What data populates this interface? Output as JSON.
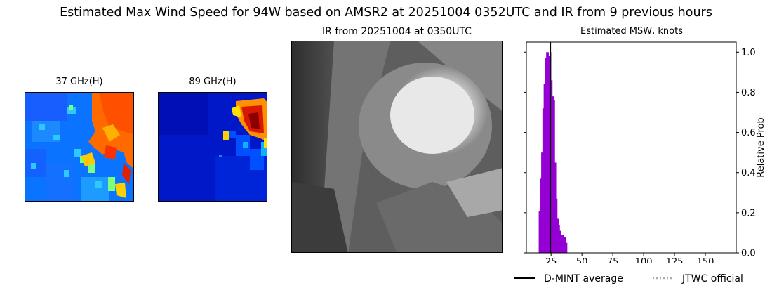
{
  "figure": {
    "title": "Estimated Max Wind Speed for 94W based on AMSR2 at 20251004 0352UTC and IR from 9 previous hours"
  },
  "panels": {
    "ghz37": {
      "title": "37 GHz(H)"
    },
    "ghz89": {
      "title": "89 GHz(H)"
    },
    "ir": {
      "title": "IR from 20251004 at 0350UTC"
    }
  },
  "chart_data": {
    "type": "bar",
    "title": "Estimated MSW, knots",
    "xlabel": "",
    "ylabel": "Relative Prob",
    "xlim": [
      5,
      175
    ],
    "ylim": [
      0,
      1.05
    ],
    "xticks": [
      25,
      50,
      75,
      100,
      125,
      150
    ],
    "yticks": [
      0.0,
      0.2,
      0.4,
      0.6,
      0.8,
      1.0
    ],
    "yaxis_side": "right",
    "bar_color": "#9400d3",
    "bins": [
      {
        "x": 15.5,
        "value": 0.21
      },
      {
        "x": 16.5,
        "value": 0.37
      },
      {
        "x": 17.5,
        "value": 0.5
      },
      {
        "x": 18.5,
        "value": 0.72
      },
      {
        "x": 19.5,
        "value": 0.84
      },
      {
        "x": 20.5,
        "value": 0.97
      },
      {
        "x": 21.5,
        "value": 1.0
      },
      {
        "x": 22.5,
        "value": 1.0
      },
      {
        "x": 23.5,
        "value": 0.98
      },
      {
        "x": 24.5,
        "value": 1.0
      },
      {
        "x": 25.5,
        "value": 0.86
      },
      {
        "x": 26.5,
        "value": 0.78
      },
      {
        "x": 27.5,
        "value": 0.76
      },
      {
        "x": 28.5,
        "value": 0.45
      },
      {
        "x": 29.5,
        "value": 0.27
      },
      {
        "x": 30.5,
        "value": 0.17
      },
      {
        "x": 31.5,
        "value": 0.14
      },
      {
        "x": 32.5,
        "value": 0.11
      },
      {
        "x": 33.5,
        "value": 0.09
      },
      {
        "x": 34.5,
        "value": 0.09
      },
      {
        "x": 35.5,
        "value": 0.08
      },
      {
        "x": 36.5,
        "value": 0.08
      },
      {
        "x": 37.5,
        "value": 0.05
      }
    ],
    "dmint_average": 24.5,
    "legend": {
      "position": "bottom",
      "entries": [
        {
          "label": "D-MINT average",
          "color": "#000000",
          "style": "solid"
        },
        {
          "label": "JTWC official",
          "color": "#aaaaaa",
          "style": "dotted"
        }
      ]
    }
  }
}
